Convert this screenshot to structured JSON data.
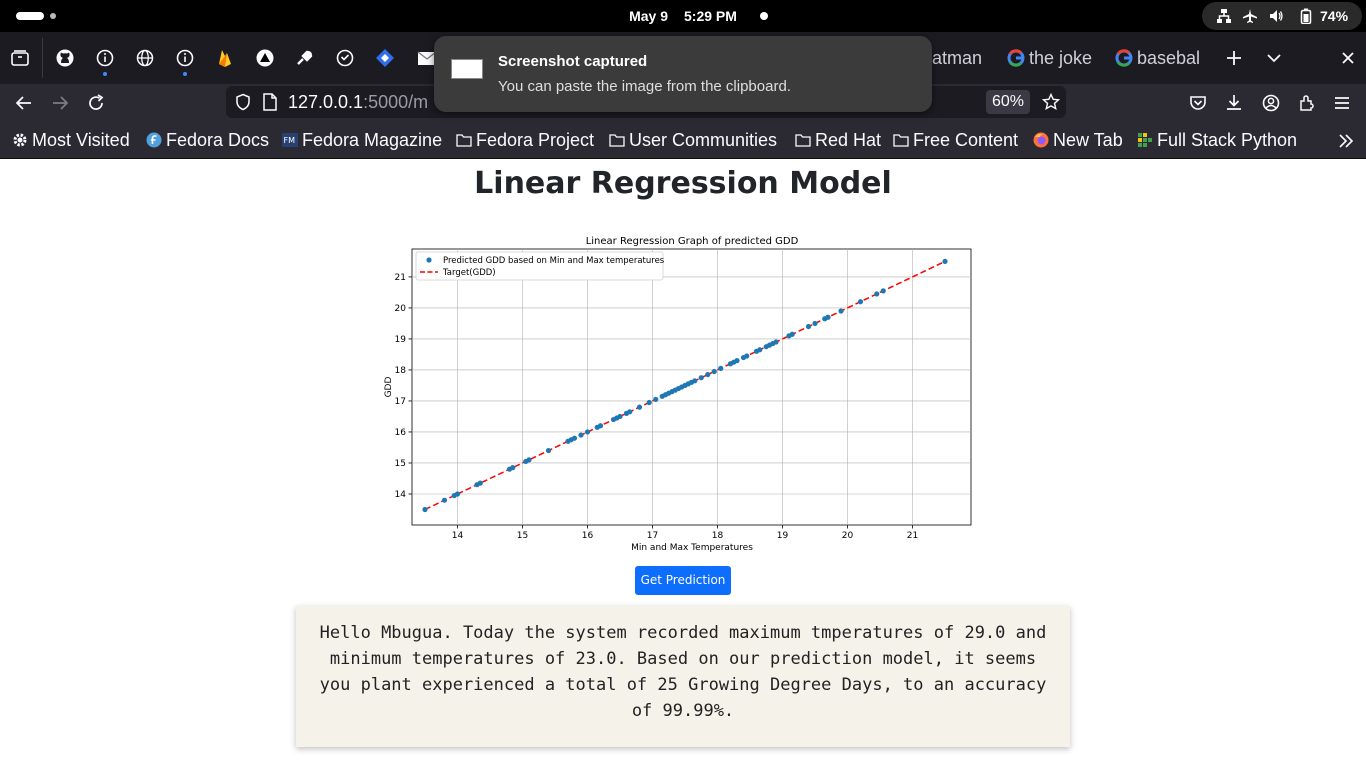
{
  "system_bar": {
    "date": "May 9",
    "time": "5:29 PM",
    "battery": "74%"
  },
  "tabs": {
    "icons": [
      "github-icon",
      "info-icon",
      "globe-icon",
      "info-icon",
      "firebase-icon",
      "triangle-icon",
      "tool-icon",
      "circle-check-icon",
      "diamond-icon",
      "email-icon"
    ],
    "text_tabs": [
      {
        "label": "atman",
        "icon": ""
      },
      {
        "label": "the joke",
        "icon": "google-icon"
      },
      {
        "label": "basebal",
        "icon": "google-icon"
      }
    ]
  },
  "nav": {
    "url_host": "127.0.0.1",
    "url_path": ":5000/m",
    "zoom": "60%"
  },
  "toast": {
    "title": "Screenshot captured",
    "body": "You can paste the image from the clipboard."
  },
  "bookmarks": [
    {
      "label": "Most Visited",
      "icon": "gear-icon"
    },
    {
      "label": "Fedora Docs",
      "icon": "fedora-icon"
    },
    {
      "label": "Fedora Magazine",
      "icon": "fm-icon"
    },
    {
      "label": "Fedora Project",
      "icon": "folder-icon"
    },
    {
      "label": "User Communities",
      "icon": "folder-icon"
    },
    {
      "label": "Red Hat",
      "icon": "folder-icon"
    },
    {
      "label": "Free Content",
      "icon": "folder-icon"
    },
    {
      "label": "New Tab",
      "icon": "firefox-icon"
    },
    {
      "label": "Full Stack Python",
      "icon": "fsp-icon"
    }
  ],
  "page": {
    "title": "Linear Regression Model",
    "button_label": "Get Prediction",
    "result_text": "Hello Mbugua. Today the system recorded maximum tmperatures of 29.0 and minimum temperatures of 23.0. Based on our prediction model, it seems you plant experienced a total of 25 Growing Degree Days, to an accuracy of 99.99%."
  },
  "chart_data": {
    "type": "scatter",
    "title": "Linear Regression Graph of predicted GDD",
    "xlabel": "Min and Max Temperatures",
    "ylabel": "GDD",
    "xlim": [
      13.3,
      21.9
    ],
    "ylim": [
      13.0,
      21.9
    ],
    "xticks": [
      14,
      15,
      16,
      17,
      18,
      19,
      20,
      21
    ],
    "yticks": [
      14,
      15,
      16,
      17,
      18,
      19,
      20,
      21
    ],
    "grid": true,
    "legend_position": "top-left",
    "series": [
      {
        "name": "Predicted GDD based on Min and Max temperatures",
        "kind": "points",
        "color": "#1f77b4",
        "x": [
          13.5,
          13.8,
          13.95,
          14.0,
          14.3,
          14.35,
          14.8,
          14.85,
          15.05,
          15.1,
          15.4,
          15.7,
          15.75,
          15.8,
          15.9,
          16.0,
          16.15,
          16.2,
          16.4,
          16.45,
          16.5,
          16.6,
          16.65,
          16.8,
          16.95,
          17.05,
          17.15,
          17.2,
          17.25,
          17.3,
          17.35,
          17.4,
          17.45,
          17.5,
          17.55,
          17.6,
          17.65,
          17.75,
          17.85,
          17.95,
          18.05,
          18.2,
          18.25,
          18.3,
          18.4,
          18.45,
          18.6,
          18.65,
          18.75,
          18.8,
          18.85,
          18.9,
          19.1,
          19.15,
          19.4,
          19.5,
          19.65,
          19.7,
          19.9,
          20.2,
          20.45,
          20.55,
          21.5
        ],
        "y": [
          13.5,
          13.8,
          13.95,
          14.0,
          14.3,
          14.35,
          14.8,
          14.85,
          15.05,
          15.1,
          15.4,
          15.7,
          15.75,
          15.8,
          15.9,
          16.0,
          16.15,
          16.2,
          16.4,
          16.45,
          16.5,
          16.6,
          16.65,
          16.8,
          16.95,
          17.05,
          17.15,
          17.2,
          17.25,
          17.3,
          17.35,
          17.4,
          17.45,
          17.5,
          17.55,
          17.6,
          17.65,
          17.75,
          17.85,
          17.95,
          18.05,
          18.2,
          18.25,
          18.3,
          18.4,
          18.45,
          18.6,
          18.65,
          18.75,
          18.8,
          18.85,
          18.9,
          19.1,
          19.15,
          19.4,
          19.5,
          19.65,
          19.7,
          19.9,
          20.2,
          20.45,
          20.55,
          21.5
        ]
      },
      {
        "name": "Target(GDD)",
        "kind": "dashed-line",
        "color": "#ff0000",
        "x": [
          13.5,
          21.5
        ],
        "y": [
          13.5,
          21.5
        ]
      }
    ]
  }
}
